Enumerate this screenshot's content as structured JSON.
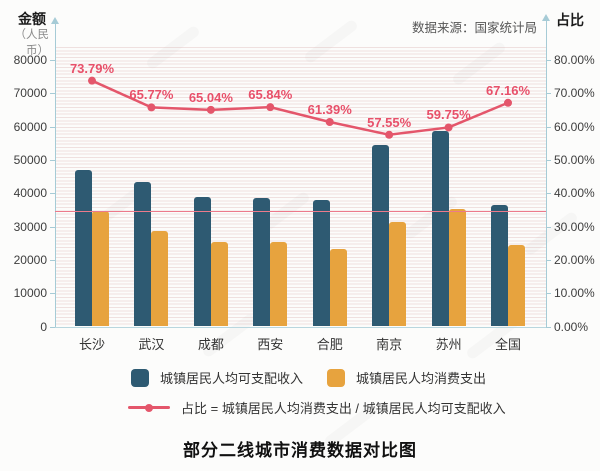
{
  "header": {
    "left_axis_title": "金额",
    "left_axis_subtitle": "（人民币）",
    "right_axis_title": "占比",
    "source_note": "数据来源：国家统计局"
  },
  "title": "部分二线城市消费数据对比图",
  "colors": {
    "income_bar": "#2e5a72",
    "expense_bar": "#e7a33e",
    "ratio_line": "#e4566b",
    "ratio_label": "#e8506a",
    "reference_line": "#ec7a8b",
    "axis": "#a6cbd6"
  },
  "chart_data": {
    "type": "bar+line",
    "categories": [
      "长沙",
      "武汉",
      "成都",
      "西安",
      "合肥",
      "南京",
      "苏州",
      "全国"
    ],
    "series": [
      {
        "name": "城镇居民人均可支配收入",
        "type": "bar",
        "color": "#2e5a72",
        "values": [
          46948,
          43405,
          38918,
          38536,
          37972,
          54538,
          58806,
          36396
        ]
      },
      {
        "name": "城镇居民人均消费支出",
        "type": "bar",
        "color": "#e7a33e",
        "values": [
          34640,
          28551,
          25314,
          25370,
          23311,
          31389,
          35137,
          24445
        ]
      },
      {
        "name": "占比 = 城镇居民人均消费支出 / 城镇居民人均可支配收入",
        "type": "line",
        "color": "#e4566b",
        "axis": "right",
        "values": [
          73.79,
          65.77,
          65.04,
          65.84,
          61.39,
          57.55,
          59.75,
          67.16
        ],
        "labels": [
          "73.79%",
          "65.77%",
          "65.04%",
          "65.84%",
          "61.39%",
          "57.55%",
          "59.75%",
          "67.16%"
        ]
      }
    ],
    "left_axis": {
      "title": "金额（人民币）",
      "min": 0,
      "max": 80000,
      "tick_labels": [
        "0",
        "10000",
        "20000",
        "30000",
        "40000",
        "50000",
        "60000",
        "70000",
        "80000"
      ]
    },
    "right_axis": {
      "title": "占比",
      "min": 0,
      "max": 80,
      "tick_labels": [
        "0.00%",
        "10.00%",
        "20.00%",
        "30.00%",
        "40.00%",
        "50.00%",
        "60.00%",
        "70.00%",
        "80.00%"
      ]
    },
    "reference_line": {
      "axis": "left",
      "value": 34640
    },
    "grid": "fine dotted horizontal lines",
    "legend_position": "bottom"
  },
  "legend": {
    "items": [
      {
        "label": "城镇居民人均可支配收入",
        "color": "#2e5a72"
      },
      {
        "label": "城镇居民人均消费支出",
        "color": "#e7a33e"
      }
    ],
    "line_item": {
      "label": "占比 = 城镇居民人均消费支出 / 城镇居民人均可支配收入",
      "color": "#e4566b"
    }
  }
}
